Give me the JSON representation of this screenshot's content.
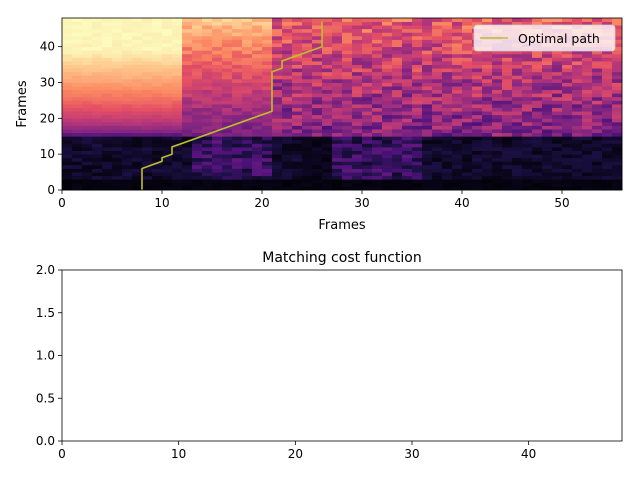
{
  "chart_data": [
    {
      "type": "heatmap",
      "title": "",
      "xlabel": "Frames",
      "ylabel": "Frames",
      "xlim": [
        0,
        56
      ],
      "ylim": [
        0,
        48
      ],
      "xticks": [
        "0",
        "10",
        "20",
        "30",
        "40",
        "50"
      ],
      "yticks": [
        "0",
        "10",
        "20",
        "30",
        "40"
      ],
      "colormap": "magma",
      "grid": false,
      "legend": {
        "position": "top-right",
        "entries": [
          "Optimal path"
        ]
      },
      "series": [
        {
          "name": "Optimal path",
          "color": "#bfbf2a",
          "x": [
            8,
            8,
            10,
            10,
            11,
            11,
            21,
            21,
            22,
            22,
            26,
            26
          ],
          "y": [
            0,
            6,
            8,
            9,
            10,
            12,
            22,
            33,
            34,
            36,
            40,
            47
          ]
        }
      ],
      "heat_regions": [
        {
          "x": [
            0,
            12
          ],
          "y": [
            15,
            48
          ],
          "level": "bright-top"
        },
        {
          "x": [
            12,
            21
          ],
          "y": [
            15,
            48
          ],
          "level": "mid-orange"
        },
        {
          "x": [
            21,
            56
          ],
          "y": [
            15,
            48
          ],
          "level": "purple-mixed"
        },
        {
          "x": [
            0,
            56
          ],
          "y": [
            0,
            15
          ],
          "level": "dark"
        }
      ]
    },
    {
      "type": "line",
      "title": "Matching cost function",
      "xlabel": "",
      "ylabel": "",
      "xlim": [
        0,
        48
      ],
      "ylim": [
        0,
        2.0
      ],
      "xticks": [
        "0",
        "10",
        "20",
        "30",
        "40"
      ],
      "yticks": [
        "0.0",
        "0.5",
        "1.0",
        "1.5",
        "2.0"
      ],
      "grid": false,
      "series": []
    }
  ]
}
